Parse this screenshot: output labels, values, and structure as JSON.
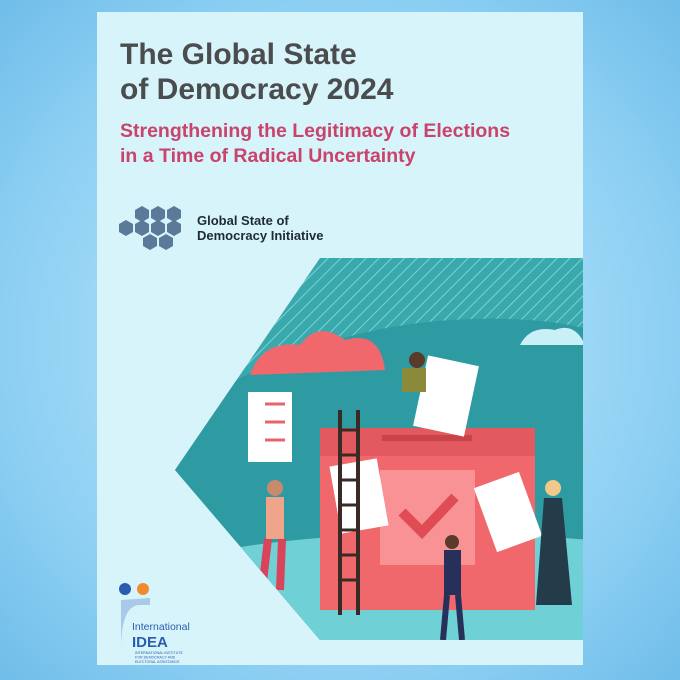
{
  "cover": {
    "title": [
      "The Global State",
      "of Democracy 2024"
    ],
    "subtitle": [
      "Strengthening the Legitimacy of Elections",
      "in a Time of Radical Uncertainty"
    ],
    "initiative": [
      "Global State of",
      "Democracy Initiative"
    ],
    "publisher": {
      "line1": "International",
      "line2": "IDEA",
      "small": [
        "INTERNATIONAL INSTITUTE",
        "FOR DEMOCRACY AND",
        "ELECTORAL ASSISTANCE"
      ]
    }
  }
}
